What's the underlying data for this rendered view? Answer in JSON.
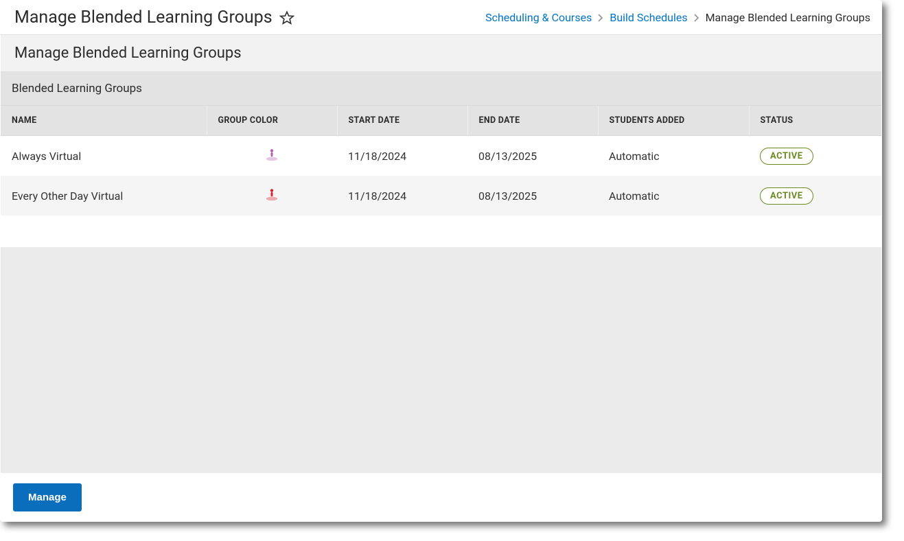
{
  "header": {
    "title": "Manage Blended Learning Groups"
  },
  "breadcrumb": {
    "items": [
      {
        "label": "Scheduling & Courses",
        "link": true
      },
      {
        "label": "Build Schedules",
        "link": true
      },
      {
        "label": "Manage Blended Learning Groups",
        "link": false
      }
    ]
  },
  "subheader": "Manage Blended Learning Groups",
  "panel_title": "Blended Learning Groups",
  "table": {
    "columns": [
      "NAME",
      "GROUP COLOR",
      "START DATE",
      "END DATE",
      "STUDENTS ADDED",
      "STATUS"
    ],
    "rows": [
      {
        "name": "Always Virtual",
        "color": "#b15fb0",
        "start_date": "11/18/2024",
        "end_date": "08/13/2025",
        "students_added": "Automatic",
        "status": "ACTIVE"
      },
      {
        "name": "Every Other Day Virtual",
        "color": "#d9202a",
        "start_date": "11/18/2024",
        "end_date": "08/13/2025",
        "students_added": "Automatic",
        "status": "ACTIVE"
      }
    ]
  },
  "footer": {
    "manage_label": "Manage"
  },
  "colors": {
    "link": "#0074c8",
    "status_border": "#6a8a1f",
    "primary_btn": "#0a6ebd",
    "header_bg": "#e3e3e3",
    "row_alt": "#f5f5f5",
    "fill_bg": "#ebebeb"
  }
}
